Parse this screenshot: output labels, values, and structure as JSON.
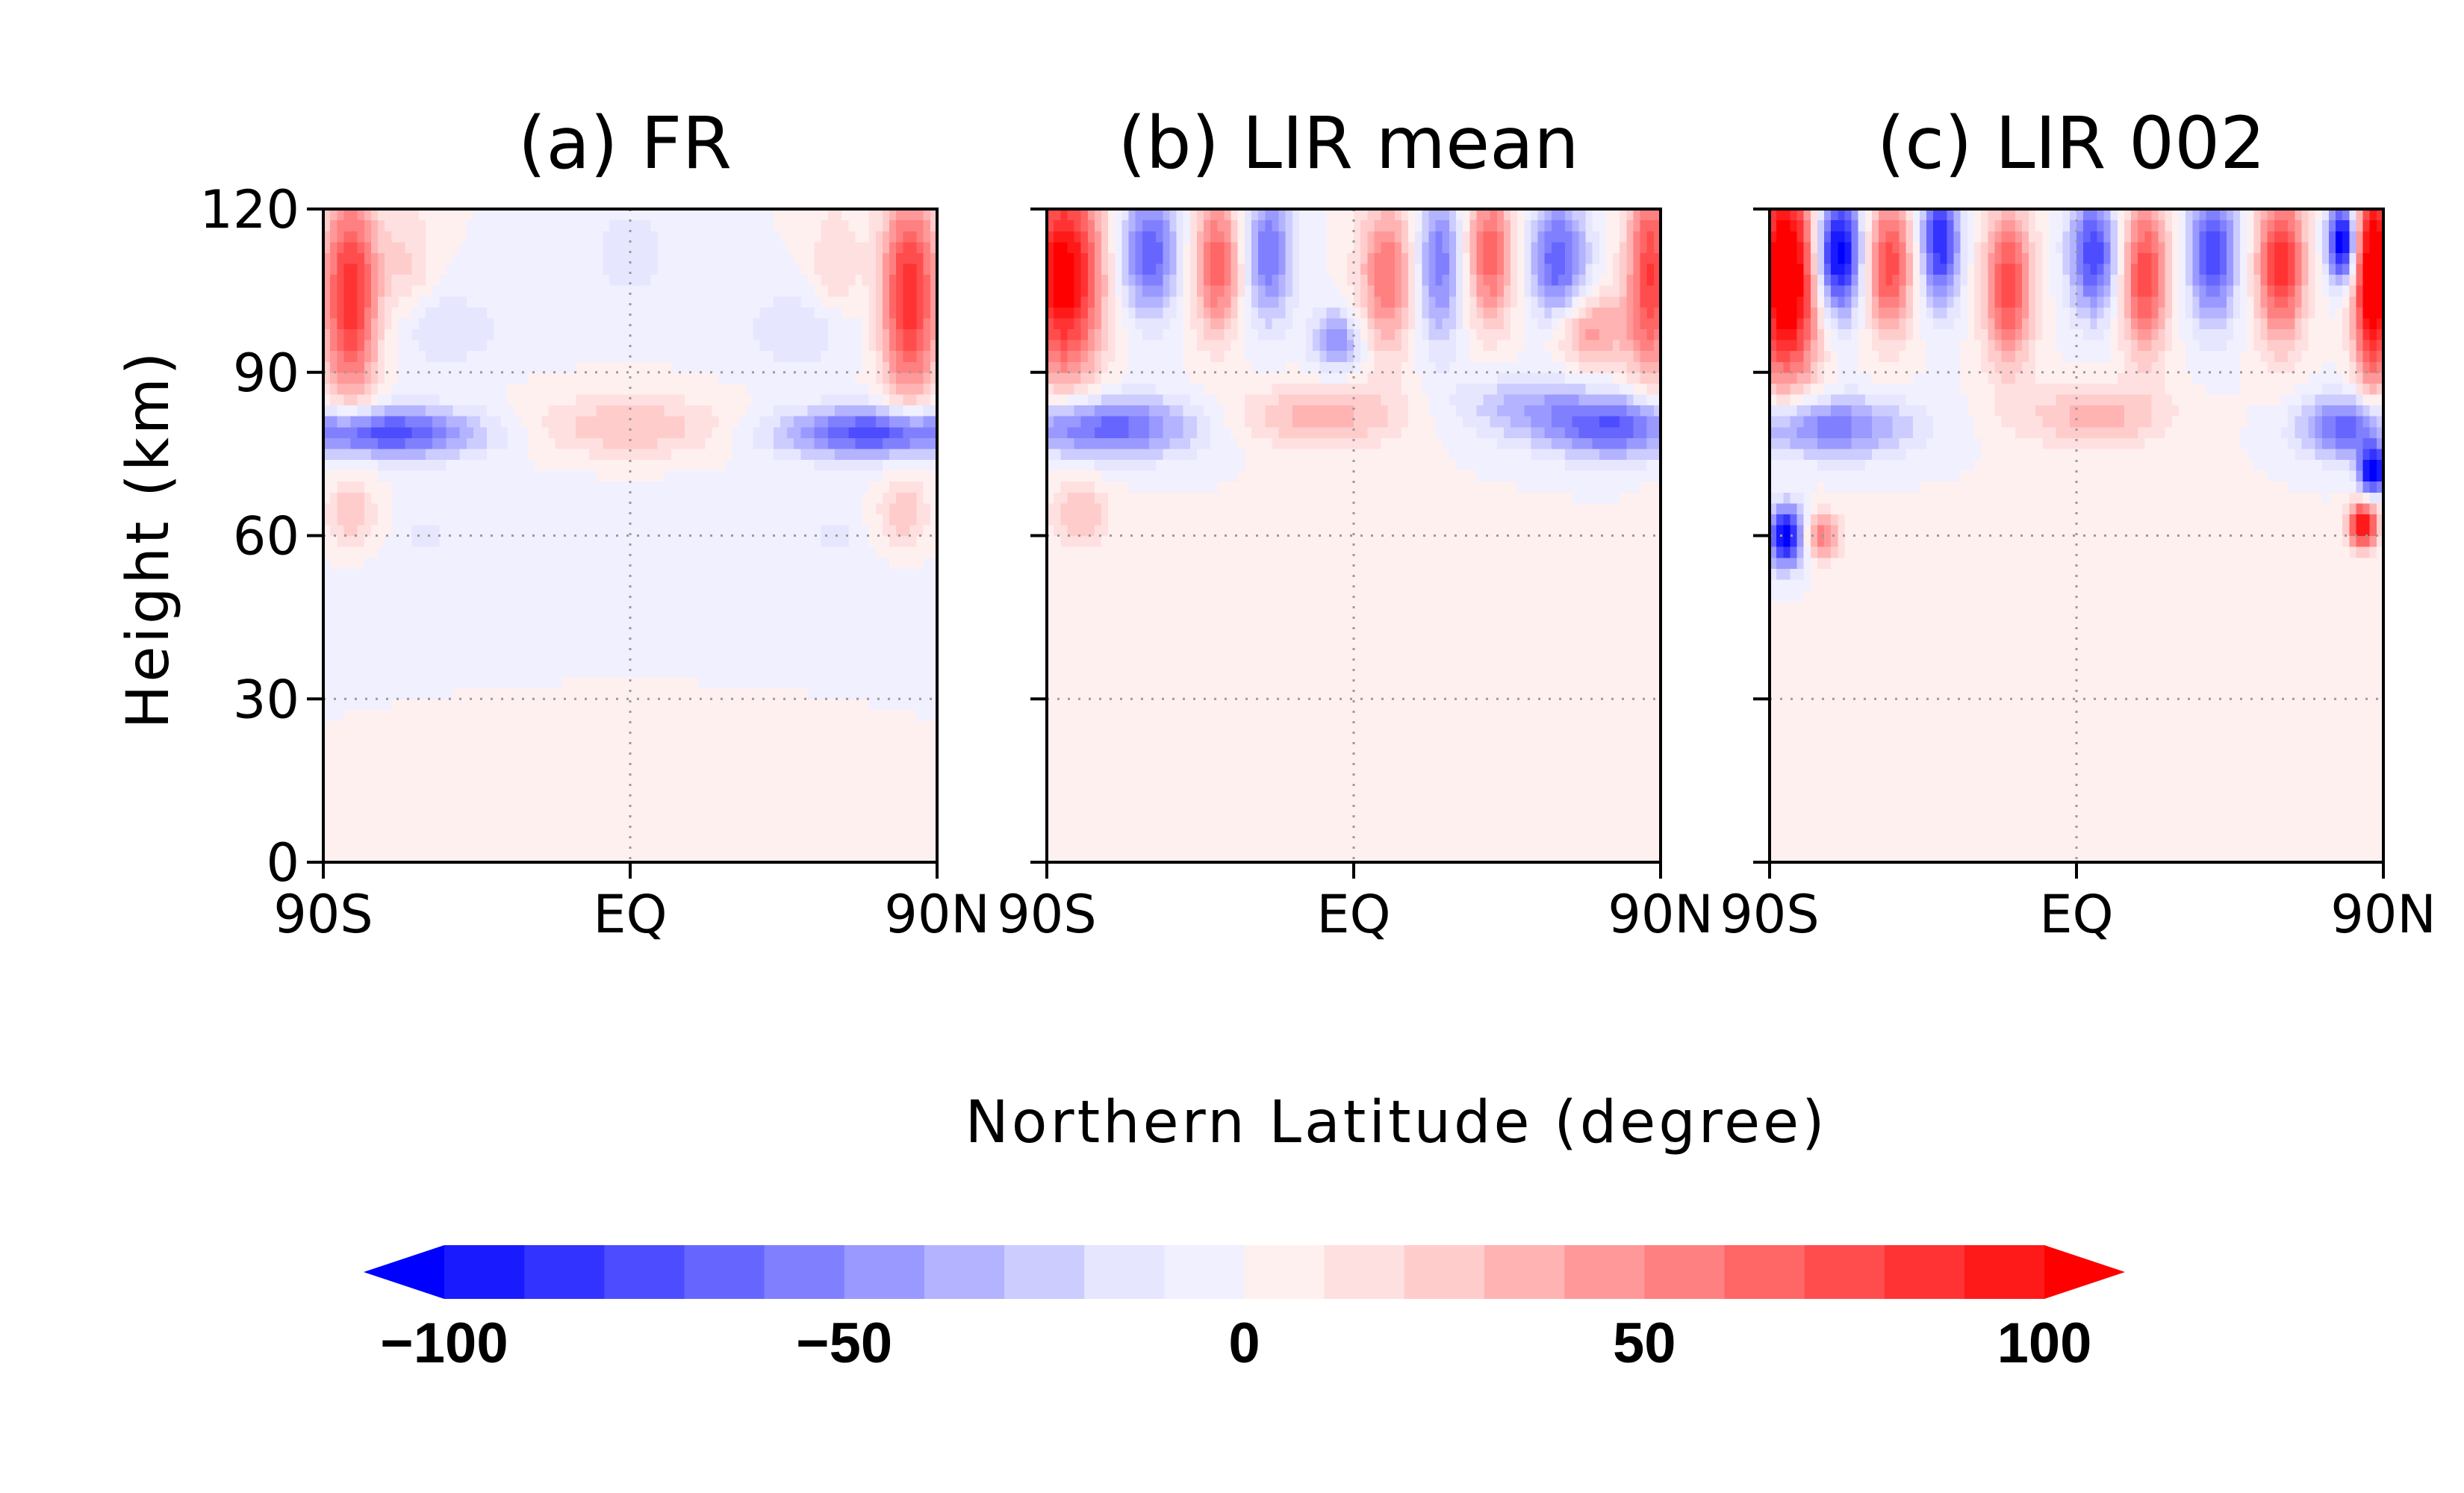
{
  "chart_data": {
    "type": "heatmap",
    "panels": [
      {
        "title": "(a) FR",
        "features": [
          {
            "lat": -82,
            "z": 104,
            "slat": 6,
            "sz": 14,
            "amp": 90
          },
          {
            "lat": 82,
            "z": 104,
            "slat": 6,
            "sz": 14,
            "amp": 90
          },
          {
            "lat": -65,
            "z": 110,
            "slat": 5,
            "sz": 8,
            "amp": 20
          },
          {
            "lat": 60,
            "z": 110,
            "slat": 5,
            "sz": 8,
            "amp": 20
          },
          {
            "lat": 0,
            "z": 112,
            "slat": 10,
            "sz": 7,
            "amp": -15
          },
          {
            "lat": -55,
            "z": 98,
            "slat": 12,
            "sz": 5,
            "amp": -20
          },
          {
            "lat": 50,
            "z": 98,
            "slat": 12,
            "sz": 5,
            "amp": -20
          },
          {
            "lat": -75,
            "z": 79,
            "slat": 22,
            "sz": 3.2,
            "amp": -80
          },
          {
            "lat": 75,
            "z": 79,
            "slat": 22,
            "sz": 3.2,
            "amp": -80
          },
          {
            "lat": 0,
            "z": 80,
            "slat": 22,
            "sz": 4,
            "amp": 32
          },
          {
            "lat": -82,
            "z": 64,
            "slat": 5,
            "sz": 4,
            "amp": 30
          },
          {
            "lat": 80,
            "z": 64,
            "slat": 5,
            "sz": 4,
            "amp": 30
          },
          {
            "lat": -60,
            "z": 60,
            "slat": 4,
            "sz": 3,
            "amp": -12
          },
          {
            "lat": 60,
            "z": 60,
            "slat": 4,
            "sz": 3,
            "amp": -12
          },
          {
            "lat": 0,
            "z": 15,
            "slat": 45,
            "sz": 15,
            "amp": 6
          },
          {
            "lat": 0,
            "z": 50,
            "slat": 60,
            "sz": 20,
            "amp": -4
          }
        ]
      },
      {
        "title": "(b) LIR mean",
        "features": [
          {
            "lat": -85,
            "z": 108,
            "slat": 8,
            "sz": 14,
            "amp": 110
          },
          {
            "lat": 87,
            "z": 108,
            "slat": 5,
            "sz": 14,
            "amp": 80
          },
          {
            "lat": -60,
            "z": 112,
            "slat": 6,
            "sz": 8,
            "amp": -70
          },
          {
            "lat": -40,
            "z": 110,
            "slat": 5,
            "sz": 9,
            "amp": 70
          },
          {
            "lat": -25,
            "z": 112,
            "slat": 5,
            "sz": 9,
            "amp": -60
          },
          {
            "lat": 10,
            "z": 108,
            "slat": 6,
            "sz": 10,
            "amp": 60
          },
          {
            "lat": 25,
            "z": 110,
            "slat": 5,
            "sz": 10,
            "amp": -60
          },
          {
            "lat": 40,
            "z": 112,
            "slat": 5,
            "sz": 9,
            "amp": 70
          },
          {
            "lat": 60,
            "z": 110,
            "slat": 6,
            "sz": 9,
            "amp": -70
          },
          {
            "lat": 68,
            "z": 98,
            "slat": 8,
            "sz": 5,
            "amp": 50
          },
          {
            "lat": -5,
            "z": 96,
            "slat": 5,
            "sz": 4,
            "amp": -50
          },
          {
            "lat": -75,
            "z": 80,
            "slat": 20,
            "sz": 4,
            "amp": -70
          },
          {
            "lat": 78,
            "z": 80,
            "slat": 16,
            "sz": 4,
            "amp": -70
          },
          {
            "lat": 50,
            "z": 84,
            "slat": 15,
            "sz": 4,
            "amp": -30
          },
          {
            "lat": -10,
            "z": 82,
            "slat": 18,
            "sz": 4,
            "amp": 35
          },
          {
            "lat": -80,
            "z": 64,
            "slat": 6,
            "sz": 4,
            "amp": 30
          },
          {
            "lat": 0,
            "z": 25,
            "slat": 50,
            "sz": 20,
            "amp": 5
          }
        ]
      },
      {
        "title": "(c) LIR 002",
        "features": [
          {
            "lat": -85,
            "z": 108,
            "slat": 7,
            "sz": 14,
            "amp": 130
          },
          {
            "lat": 87,
            "z": 108,
            "slat": 4,
            "sz": 14,
            "amp": 130
          },
          {
            "lat": -70,
            "z": 112,
            "slat": 5,
            "sz": 8,
            "amp": -120
          },
          {
            "lat": -55,
            "z": 110,
            "slat": 5,
            "sz": 9,
            "amp": 80
          },
          {
            "lat": -40,
            "z": 114,
            "slat": 4,
            "sz": 8,
            "amp": -90
          },
          {
            "lat": -20,
            "z": 106,
            "slat": 5,
            "sz": 10,
            "amp": 80
          },
          {
            "lat": 5,
            "z": 112,
            "slat": 5,
            "sz": 8,
            "amp": -80
          },
          {
            "lat": 20,
            "z": 108,
            "slat": 5,
            "sz": 10,
            "amp": 80
          },
          {
            "lat": 40,
            "z": 112,
            "slat": 5,
            "sz": 9,
            "amp": -80
          },
          {
            "lat": 60,
            "z": 110,
            "slat": 5,
            "sz": 10,
            "amp": 90
          },
          {
            "lat": 78,
            "z": 114,
            "slat": 3,
            "sz": 5,
            "amp": -120
          },
          {
            "lat": -75,
            "z": 80,
            "slat": 18,
            "sz": 4,
            "amp": -60
          },
          {
            "lat": 80,
            "z": 80,
            "slat": 10,
            "sz": 4,
            "amp": -70
          },
          {
            "lat": 5,
            "z": 82,
            "slat": 15,
            "sz": 4,
            "amp": 35
          },
          {
            "lat": -85,
            "z": 60,
            "slat": 4,
            "sz": 4,
            "amp": -110
          },
          {
            "lat": -75,
            "z": 60,
            "slat": 4,
            "sz": 3,
            "amp": 60
          },
          {
            "lat": 87,
            "z": 72,
            "slat": 3,
            "sz": 3,
            "amp": -120
          },
          {
            "lat": 84,
            "z": 62,
            "slat": 3,
            "sz": 3,
            "amp": 110
          },
          {
            "lat": 0,
            "z": 25,
            "slat": 50,
            "sz": 20,
            "amp": 6
          }
        ]
      }
    ],
    "x_axis": {
      "range": [
        -90,
        90
      ],
      "ticks": [
        -90,
        0,
        90
      ],
      "tick_labels": [
        "90S",
        "EQ",
        "90N"
      ],
      "label": "Northern Latitude (degree)"
    },
    "y_axis": {
      "range": [
        0,
        120
      ],
      "ticks": [
        0,
        30,
        60,
        90,
        120
      ],
      "tick_labels": [
        "0",
        "30",
        "60",
        "90",
        "120"
      ],
      "label": "Height (km)"
    },
    "grid": {
      "x": [
        0
      ],
      "y": [
        30,
        60,
        90
      ],
      "style": "dotted"
    },
    "colorbar": {
      "levels": [
        -100,
        -90,
        -80,
        -70,
        -60,
        -50,
        -40,
        -30,
        -20,
        -10,
        0,
        10,
        20,
        30,
        40,
        50,
        60,
        70,
        80,
        90,
        100
      ],
      "tick_values": [
        -100,
        -50,
        0,
        50,
        100
      ],
      "tick_labels": [
        "−100",
        "−50",
        "0",
        "50",
        "100"
      ],
      "extend": "both",
      "colors": [
        "#0000ff",
        "#1a1aff",
        "#3333ff",
        "#4d4dff",
        "#6666ff",
        "#8080ff",
        "#9999ff",
        "#b3b3ff",
        "#ccccff",
        "#e6e6ff",
        "#f0f0ff",
        "#fff0f0",
        "#ffe0e0",
        "#ffcccc",
        "#ffb3b3",
        "#ff9999",
        "#ff8080",
        "#ff6666",
        "#ff4d4d",
        "#ff3333",
        "#ff1a1a",
        "#ff0000"
      ]
    }
  }
}
